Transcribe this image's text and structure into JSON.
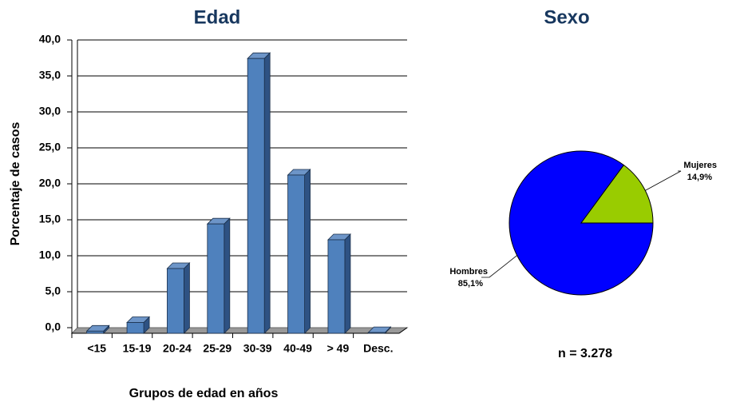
{
  "charts": [
    {
      "type": "bar",
      "title": "Edad",
      "xlabel": "Grupos de edad en años",
      "ylabel": "Porcentaje de casos",
      "categories": [
        "<15",
        "15-19",
        "20-24",
        "25-29",
        "30-39",
        "40-49",
        "> 49",
        "Desc."
      ],
      "values": [
        0.3,
        1.5,
        9.0,
        15.2,
        38.2,
        22.0,
        13.0,
        0.1
      ],
      "color": "#4f81bd",
      "ylim": [
        0,
        40
      ],
      "yticks": [
        {
          "value": 0,
          "label": "0,0"
        },
        {
          "value": 5,
          "label": "5,0"
        },
        {
          "value": 10,
          "label": "10,0"
        },
        {
          "value": 15,
          "label": "15,0"
        },
        {
          "value": 20,
          "label": "20,0"
        },
        {
          "value": 25,
          "label": "25,0"
        },
        {
          "value": 30,
          "label": "30,0"
        },
        {
          "value": 35,
          "label": "35,0"
        },
        {
          "value": 40,
          "label": "40,0"
        }
      ],
      "grid": true
    },
    {
      "type": "pie",
      "title": "Sexo",
      "categories": [
        "Hombres",
        "Mujeres"
      ],
      "values": [
        85.1,
        14.9
      ],
      "value_labels": [
        "85,1%",
        "14,9%"
      ],
      "colors": [
        "#0000ff",
        "#99cc00"
      ],
      "annotation": "n = 3.278"
    }
  ]
}
